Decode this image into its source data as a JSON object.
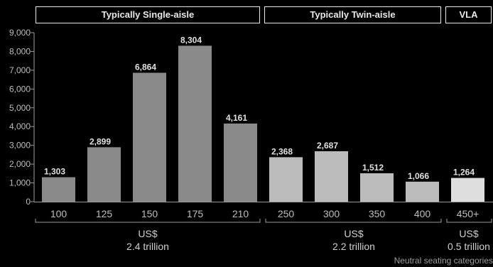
{
  "segments": [
    {
      "label": "Typically Single-aisle"
    },
    {
      "label": "Typically Twin-aisle"
    },
    {
      "label": "VLA"
    }
  ],
  "totals": [
    {
      "currency": "US$",
      "amount": "2.4 trillion"
    },
    {
      "currency": "US$",
      "amount": "2.2 trillion"
    },
    {
      "currency": "US$",
      "amount": "0.5 trillion"
    }
  ],
  "footnote": "Neutral seating categories",
  "colors": {
    "background": "#000000",
    "single_aisle": "#8a8a8a",
    "twin_aisle": "#bcbcbc",
    "vla": "#dedede"
  },
  "chart_data": {
    "type": "bar",
    "categories": [
      "100",
      "125",
      "150",
      "175",
      "210",
      "250",
      "300",
      "350",
      "400",
      "450+"
    ],
    "values": [
      1303,
      2899,
      6864,
      8304,
      4161,
      2368,
      2687,
      1512,
      1066,
      1264
    ],
    "value_labels": [
      "1,303",
      "2,899",
      "6,864",
      "8,304",
      "4,161",
      "2,368",
      "2,687",
      "1,512",
      "1,066",
      "1,264"
    ],
    "groups": [
      "Typically Single-aisle",
      "Typically Single-aisle",
      "Typically Single-aisle",
      "Typically Single-aisle",
      "Typically Single-aisle",
      "Typically Twin-aisle",
      "Typically Twin-aisle",
      "Typically Twin-aisle",
      "Typically Twin-aisle",
      "VLA"
    ],
    "ylim": [
      0,
      9000
    ],
    "yticks": [
      0,
      1000,
      2000,
      3000,
      4000,
      5000,
      6000,
      7000,
      8000,
      9000
    ],
    "ytick_labels": [
      "0",
      "1,000",
      "2,000",
      "3,000",
      "4,000",
      "5,000",
      "6,000",
      "7,000",
      "8,000",
      "9,000"
    ],
    "grid": false,
    "title": "",
    "xlabel": "",
    "ylabel": ""
  }
}
